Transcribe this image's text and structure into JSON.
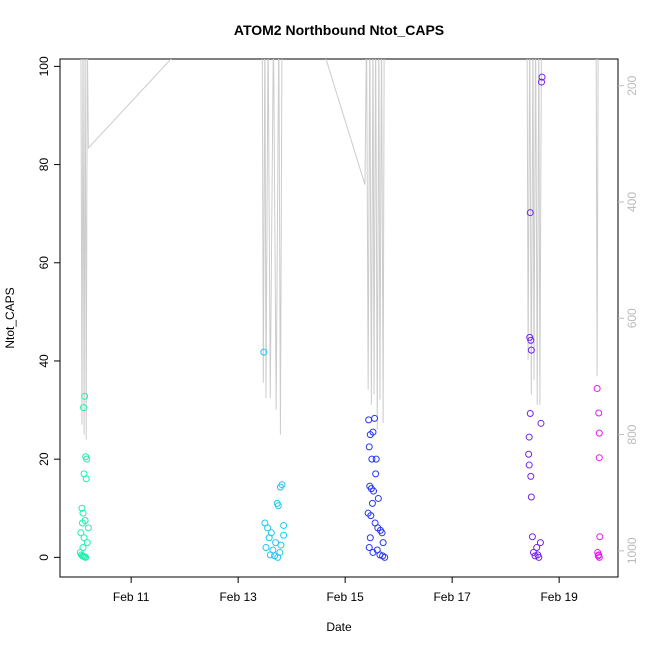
{
  "chart_data": {
    "type": "scatter",
    "title": "ATOM2 Northbound Ntot_CAPS",
    "xlabel": "Date",
    "ylabel": "Ntot_CAPS",
    "xlim": [
      9.67,
      20.1
    ],
    "xticks": [
      {
        "value": 11,
        "label": "Feb 11"
      },
      {
        "value": 13,
        "label": "Feb 13"
      },
      {
        "value": 15,
        "label": "Feb 15"
      },
      {
        "value": 17,
        "label": "Feb 17"
      },
      {
        "value": 19,
        "label": "Feb 19"
      }
    ],
    "ylim": [
      -4,
      101.5
    ],
    "yticks": [
      0,
      20,
      40,
      60,
      80,
      100
    ],
    "y2lim": [
      1045,
      154
    ],
    "y2ticks": [
      200,
      400,
      600,
      800,
      1000
    ],
    "series": [
      {
        "color": "#1ef0b0",
        "x": [
          10.13,
          10.11,
          10.15,
          10.17,
          10.12,
          10.16,
          10.08,
          10.1,
          10.14,
          10.09,
          10.2,
          10.06,
          10.12,
          10.18,
          10.1,
          10.05,
          10.07,
          10.09,
          10.11,
          10.13,
          10.15
        ],
        "values": [
          32.8,
          30.5,
          20.5,
          20,
          17,
          16,
          10,
          9,
          7.5,
          7,
          6,
          5,
          4,
          3,
          2,
          1,
          0.5,
          0.3,
          0.2,
          0.1,
          0
        ]
      },
      {
        "color": "#1ec8f0",
        "x": [
          13.48,
          13.82,
          13.79,
          13.73,
          13.75,
          13.5,
          13.85,
          13.55,
          13.62,
          13.85,
          13.58,
          13.7,
          13.8,
          13.52,
          13.65,
          13.78,
          13.6,
          13.68,
          13.74
        ],
        "values": [
          41.8,
          14.8,
          14.3,
          11,
          10.5,
          7,
          6.5,
          6,
          5,
          4.5,
          4,
          3,
          2.5,
          2,
          1.5,
          1,
          0.5,
          0.3,
          0
        ]
      },
      {
        "color": "#2838f0",
        "x": [
          15.55,
          15.44,
          15.52,
          15.47,
          15.45,
          15.5,
          15.58,
          15.57,
          15.46,
          15.49,
          15.53,
          15.62,
          15.51,
          15.43,
          15.48,
          15.56,
          15.61,
          15.66,
          15.69,
          15.47,
          15.71,
          15.45,
          15.6,
          15.52,
          15.65,
          15.7,
          15.74
        ],
        "values": [
          28.3,
          28,
          25.5,
          25,
          22.5,
          20,
          20,
          17,
          14.5,
          14,
          13.5,
          12,
          11,
          9,
          8.5,
          7,
          6,
          5.5,
          5,
          4,
          3,
          2,
          1.5,
          1,
          0.5,
          0.3,
          0
        ]
      },
      {
        "color": "#7424f0",
        "x": [
          18.68,
          18.67,
          18.46,
          18.45,
          18.47,
          18.48,
          18.46,
          18.66,
          18.44,
          18.43,
          18.44,
          18.47,
          18.48,
          18.5,
          18.65,
          18.58,
          18.52,
          18.6,
          18.55,
          18.62
        ],
        "values": [
          97.8,
          96.8,
          70.2,
          44.8,
          44.2,
          42.2,
          29.3,
          27.3,
          24.5,
          21,
          18.8,
          16.5,
          12.3,
          4.2,
          3,
          2,
          1,
          0.5,
          0.3,
          0
        ]
      },
      {
        "color": "#e01ef0",
        "x": [
          19.71,
          19.74,
          19.75,
          19.75,
          19.76,
          19.72,
          19.74,
          19.73,
          19.75
        ],
        "values": [
          34.4,
          29.4,
          25.3,
          20.3,
          4.2,
          1,
          0.5,
          0.3,
          0
        ]
      },
      {
        "color": "#cccccc",
        "axis": "y2",
        "style": "line",
        "x": [
          10.06,
          10.08,
          10.1,
          10.12,
          10.14,
          10.16,
          10.18,
          10.2,
          12.29,
          13.45,
          13.47,
          13.5,
          13.52,
          13.56,
          13.6,
          13.66,
          13.71,
          13.76,
          13.79,
          13.82,
          14.46,
          15.37,
          15.4,
          15.43,
          15.46,
          15.49,
          15.52,
          15.54,
          15.57,
          15.6,
          15.63,
          15.65,
          15.68,
          15.71,
          15.73,
          18.4,
          18.42,
          18.45,
          18.48,
          18.51,
          18.53,
          18.56,
          18.59,
          18.62,
          18.64,
          18.67,
          19.69,
          19.71,
          19.73
        ],
        "values": [
          100,
          783,
          100,
          800,
          100,
          809,
          100,
          307,
          100,
          100,
          711,
          100,
          737,
          100,
          737,
          100,
          757,
          100,
          800,
          100,
          100,
          370,
          100,
          723,
          100,
          749,
          100,
          731,
          100,
          792,
          100,
          740,
          100,
          780,
          100,
          100,
          671,
          100,
          731,
          100,
          706,
          100,
          749,
          100,
          749,
          100,
          100,
          700,
          100
        ]
      }
    ]
  }
}
